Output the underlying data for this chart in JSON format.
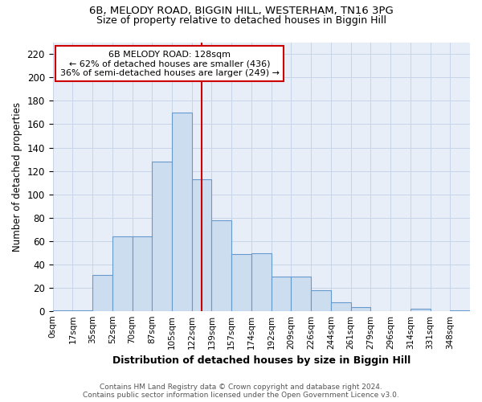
{
  "title": "6B, MELODY ROAD, BIGGIN HILL, WESTERHAM, TN16 3PG",
  "subtitle": "Size of property relative to detached houses in Biggin Hill",
  "xlabel": "Distribution of detached houses by size in Biggin Hill",
  "ylabel": "Number of detached properties",
  "bin_labels": [
    "0sqm",
    "17sqm",
    "35sqm",
    "52sqm",
    "70sqm",
    "87sqm",
    "105sqm",
    "122sqm",
    "139sqm",
    "157sqm",
    "174sqm",
    "192sqm",
    "209sqm",
    "226sqm",
    "244sqm",
    "261sqm",
    "279sqm",
    "296sqm",
    "314sqm",
    "331sqm",
    "348sqm"
  ],
  "bar_values": [
    1,
    1,
    31,
    64,
    64,
    128,
    170,
    113,
    78,
    49,
    50,
    30,
    30,
    18,
    8,
    4,
    0,
    0,
    2,
    0,
    1
  ],
  "bar_color": "#ccddf0",
  "bar_edge_color": "#6699cc",
  "grid_color": "#c8d4e8",
  "property_line_x": 7,
  "property_line_color": "#cc0000",
  "annotation_line1": "6B MELODY ROAD: 128sqm",
  "annotation_line2": "← 62% of detached houses are smaller (436)",
  "annotation_line3": "36% of semi-detached houses are larger (249) →",
  "annotation_box_color": "#ffffff",
  "annotation_box_edge": "#cc0000",
  "footer_text": "Contains HM Land Registry data © Crown copyright and database right 2024.\nContains public sector information licensed under the Open Government Licence v3.0.",
  "ylim": [
    0,
    230
  ],
  "yticks": [
    0,
    20,
    40,
    60,
    80,
    100,
    120,
    140,
    160,
    180,
    200,
    220
  ],
  "n_bins": 21
}
